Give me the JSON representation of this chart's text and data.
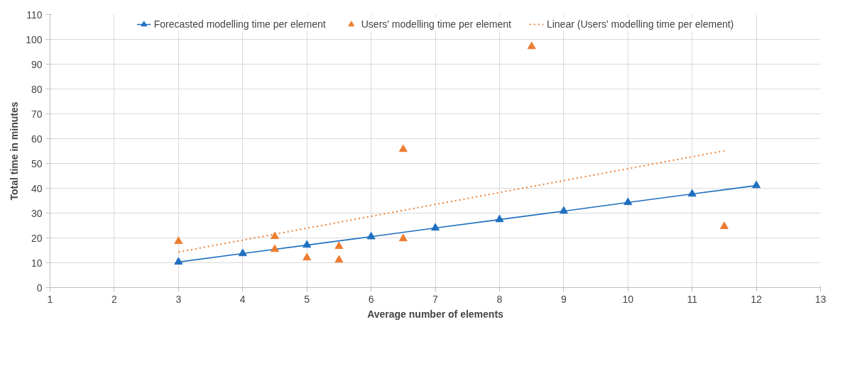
{
  "chart_data": {
    "type": "scatter",
    "xlabel": "Average number of elements",
    "ylabel": "Total time in minutes",
    "xlim": [
      1,
      13
    ],
    "xticks": [
      1,
      2,
      3,
      4,
      5,
      6,
      7,
      8,
      9,
      10,
      11,
      12,
      13
    ],
    "ylim": [
      0,
      110
    ],
    "yticks": [
      0,
      10,
      20,
      30,
      40,
      50,
      60,
      70,
      80,
      90,
      100,
      110
    ],
    "grid": true,
    "legend": "top",
    "series": [
      {
        "name": "Forecasted modelling time per element",
        "type": "line",
        "marker": "triangle",
        "line_style": "solid",
        "color": "#1f6fbf",
        "x": [
          3,
          4,
          5,
          6,
          7,
          8,
          9,
          10,
          11,
          12
        ],
        "values": [
          10.3,
          13.7,
          17.1,
          20.5,
          24.0,
          27.4,
          30.8,
          34.3,
          37.7,
          41.1
        ]
      },
      {
        "name": "Users' modelling time per element",
        "marker": "triangle",
        "color": "#ed7d31",
        "x": [
          3,
          4.5,
          4.5,
          5,
          5.5,
          5.5,
          6.5,
          6.5,
          8.5,
          11.5
        ],
        "values": [
          18.6,
          20.6,
          15.4,
          12,
          16.6,
          11.1,
          55.7,
          19.7,
          97.1,
          24.6
        ]
      },
      {
        "name": "Linear (Users' modelling time per element)",
        "type": "line",
        "marker": "none",
        "line_style": "dotted",
        "color": "#ed7d31",
        "x": [
          3,
          11.5
        ],
        "values": [
          14.3,
          55.1
        ]
      }
    ]
  }
}
